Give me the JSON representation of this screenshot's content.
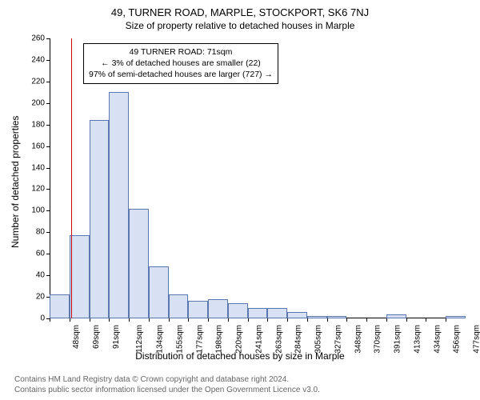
{
  "title_main": "49, TURNER ROAD, MARPLE, STOCKPORT, SK6 7NJ",
  "title_sub": "Size of property relative to detached houses in Marple",
  "y_axis_label": "Number of detached properties",
  "x_axis_label": "Distribution of detached houses by size in Marple",
  "attribution_line1": "Contains HM Land Registry data © Crown copyright and database right 2024.",
  "attribution_line2": "Contains public sector information licensed under the Open Government Licence v3.0.",
  "annotation": {
    "line1": "49 TURNER ROAD: 71sqm",
    "line2": "← 3% of detached houses are smaller (22)",
    "line3": "97% of semi-detached houses are larger (727) →"
  },
  "chart": {
    "type": "histogram",
    "ylim": [
      0,
      260
    ],
    "ytick_step": 20,
    "x_bin_width_sqm": 21,
    "x_start_sqm": 48,
    "bar_fill": "#d8e1f3",
    "bar_border": "#5b77b0",
    "marker_color": "#d00000",
    "marker_value_sqm": 71,
    "background": "#ffffff",
    "x_ticks": [
      "48sqm",
      "69sqm",
      "91sqm",
      "112sqm",
      "134sqm",
      "155sqm",
      "177sqm",
      "198sqm",
      "220sqm",
      "241sqm",
      "263sqm",
      "284sqm",
      "305sqm",
      "327sqm",
      "348sqm",
      "370sqm",
      "391sqm",
      "413sqm",
      "434sqm",
      "456sqm",
      "477sqm"
    ],
    "values": [
      22,
      77,
      184,
      210,
      102,
      48,
      22,
      16,
      18,
      14,
      10,
      10,
      6,
      2,
      2,
      0,
      0,
      4,
      0,
      0,
      2
    ],
    "title_fontsize": 13,
    "label_fontsize": 12,
    "tick_fontsize": 10
  }
}
